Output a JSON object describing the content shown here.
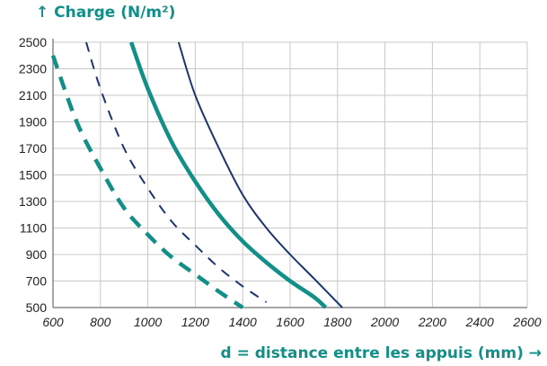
{
  "chart_data": {
    "type": "line",
    "ylabel": "↑ Charge (N/m²)",
    "xlabel": "d = distance entre les appuis (mm) →",
    "xlim": [
      600,
      2600
    ],
    "ylim": [
      500,
      2500
    ],
    "x_ticks": [
      "600",
      "800",
      "1000",
      "1200",
      "1400",
      "1600",
      "1800",
      "2000",
      "2200",
      "2400",
      "2600"
    ],
    "y_ticks": [
      "500",
      "700",
      "900",
      "1100",
      "1300",
      "1500",
      "1700",
      "1900",
      "2100",
      "2300",
      "2500"
    ],
    "grid": true,
    "legend": "none",
    "colors": {
      "teal": "#128f88",
      "navy": "#1c3570",
      "grid": "#c8c8c8",
      "axis": "#8a8a8a"
    },
    "series": [
      {
        "color": "#128f88",
        "style": "dashed",
        "width": "thick",
        "points": [
          [
            600,
            2400
          ],
          [
            700,
            1900
          ],
          [
            800,
            1550
          ],
          [
            900,
            1250
          ],
          [
            1000,
            1050
          ],
          [
            1100,
            880
          ],
          [
            1200,
            750
          ],
          [
            1300,
            620
          ],
          [
            1400,
            500
          ]
        ]
      },
      {
        "color": "#1c3570",
        "style": "dashed",
        "width": "thin",
        "points": [
          [
            740,
            2500
          ],
          [
            800,
            2150
          ],
          [
            900,
            1700
          ],
          [
            1000,
            1400
          ],
          [
            1100,
            1150
          ],
          [
            1200,
            970
          ],
          [
            1300,
            800
          ],
          [
            1400,
            660
          ],
          [
            1500,
            540
          ]
        ]
      },
      {
        "color": "#128f88",
        "style": "solid",
        "width": "thick",
        "points": [
          [
            930,
            2500
          ],
          [
            1000,
            2150
          ],
          [
            1100,
            1750
          ],
          [
            1200,
            1450
          ],
          [
            1300,
            1200
          ],
          [
            1400,
            1000
          ],
          [
            1500,
            840
          ],
          [
            1600,
            700
          ],
          [
            1700,
            580
          ],
          [
            1750,
            500
          ]
        ]
      },
      {
        "color": "#1c3570",
        "style": "solid",
        "width": "thin",
        "points": [
          [
            1130,
            2500
          ],
          [
            1200,
            2100
          ],
          [
            1300,
            1700
          ],
          [
            1400,
            1350
          ],
          [
            1500,
            1100
          ],
          [
            1600,
            900
          ],
          [
            1700,
            720
          ],
          [
            1820,
            500
          ]
        ]
      }
    ]
  }
}
